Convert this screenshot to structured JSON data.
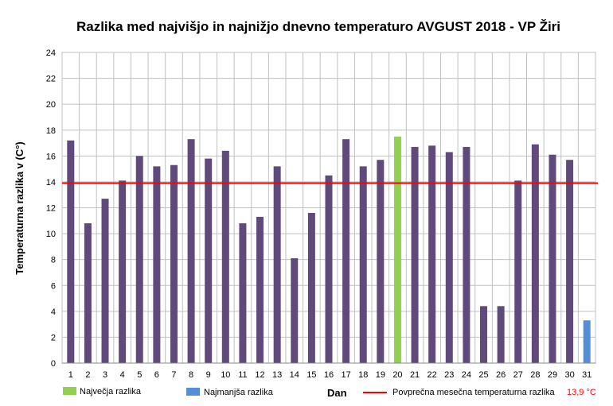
{
  "chart_data": {
    "type": "bar",
    "title": "Razlika med najvišjo in najnižjo dnevno temperaturo AVGUST 2018 - VP Žiri",
    "xlabel": "Dan",
    "ylabel": "Temperaturna razlika v (C°)",
    "ylim": [
      0,
      24
    ],
    "yticks": [
      "0",
      "2",
      "4",
      "6",
      "8",
      "10",
      "12",
      "14",
      "16",
      "18",
      "20",
      "22",
      "24"
    ],
    "categories": [
      "1",
      "2",
      "3",
      "4",
      "5",
      "6",
      "7",
      "8",
      "9",
      "10",
      "11",
      "12",
      "13",
      "14",
      "15",
      "16",
      "17",
      "18",
      "19",
      "20",
      "21",
      "22",
      "23",
      "24",
      "25",
      "26",
      "27",
      "28",
      "29",
      "30",
      "31"
    ],
    "values": [
      17.2,
      10.8,
      12.7,
      14.1,
      16.0,
      15.2,
      15.3,
      17.3,
      15.8,
      16.4,
      10.8,
      11.3,
      15.2,
      8.1,
      11.6,
      14.5,
      17.3,
      15.2,
      15.7,
      17.5,
      16.7,
      16.8,
      16.3,
      16.7,
      4.4,
      4.4,
      14.1,
      16.9,
      16.1,
      15.7,
      3.3
    ],
    "max_day": "20",
    "min_day": "31",
    "average": 13.9,
    "grid": true,
    "legend_position": "bottom",
    "legend": {
      "max_label": "Največja razlika",
      "min_label": "Najmanjša razlika",
      "avg_label": "Povprečna mesečna temperaturna razlika",
      "avg_value": "13,9 °C"
    },
    "colors": {
      "bar": "#604a7b",
      "max": "#92d050",
      "min": "#558ed5",
      "avg": "#ff0000",
      "grid": "#c0c0c0"
    }
  }
}
